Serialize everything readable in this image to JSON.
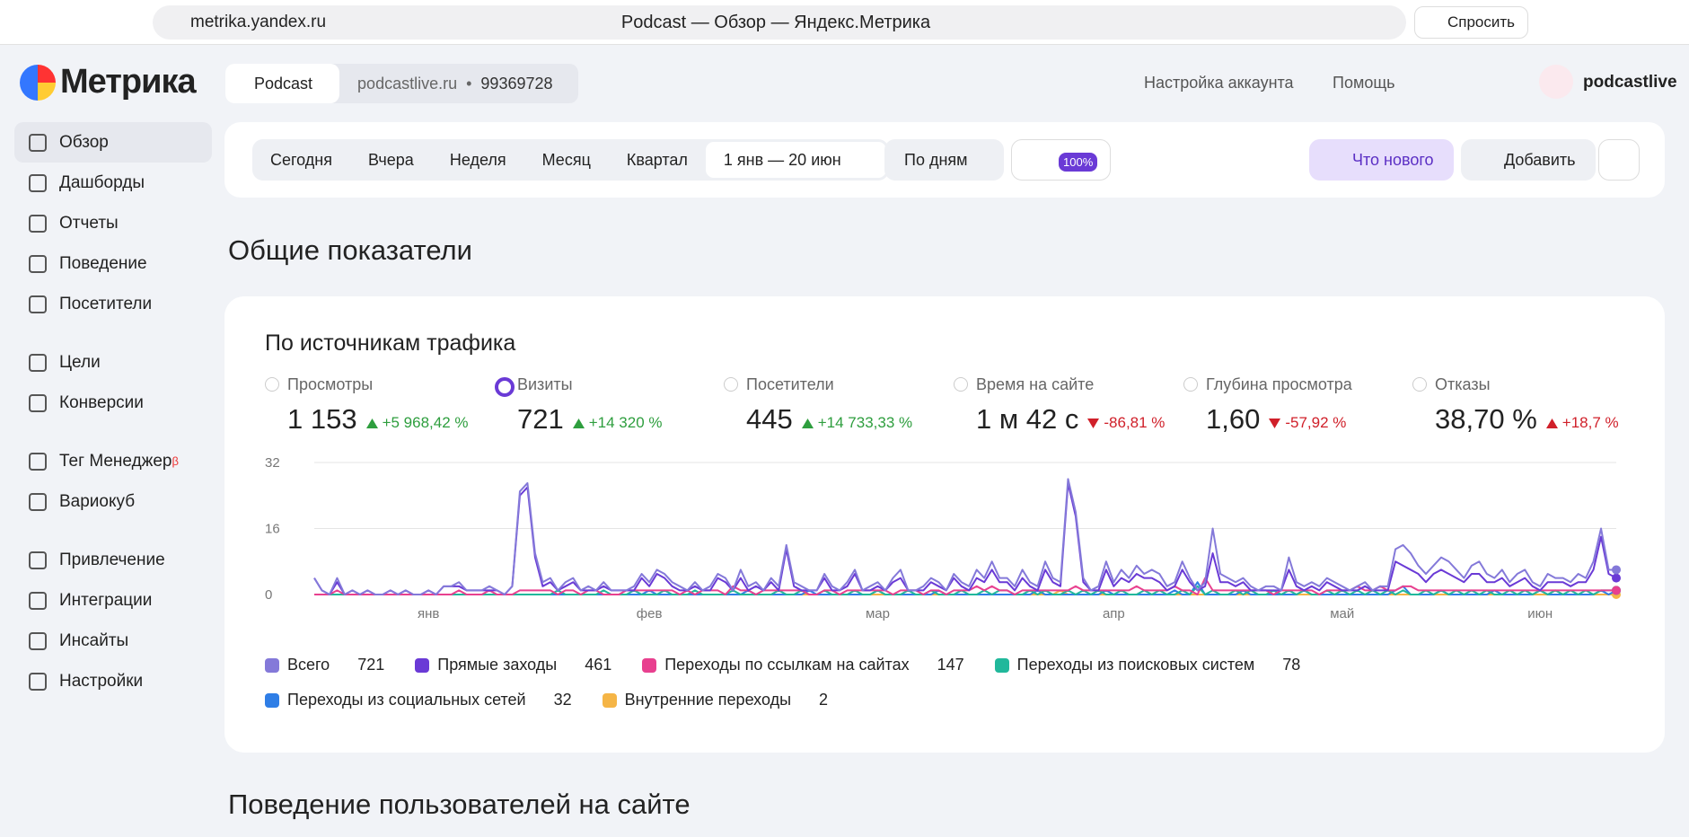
{
  "browser": {
    "url": "metrika.yandex.ru",
    "tab_title": "Podcast — Обзор — Яндекс.Метрика",
    "ask": "Спросить"
  },
  "header": {
    "logo": "Метрика",
    "counter": "Podcast",
    "site": "podcastlive.ru",
    "sep": "•",
    "counter_id": "99369728",
    "account": "Настройка аккаунта",
    "help": "Помощь",
    "user": "podcastlive"
  },
  "sidebar": {
    "groups": [
      [
        "Обзор",
        "Дашборды",
        "Отчеты",
        "Поведение",
        "Посетители"
      ],
      [
        "Цели",
        "Конверсии"
      ],
      [
        "Тег Менеджер",
        "Вариокуб"
      ],
      [
        "Привлечение",
        "Интеграции",
        "Инсайты",
        "Настройки"
      ]
    ],
    "beta": "β"
  },
  "toolbar": {
    "periods": [
      "Сегодня",
      "Вчера",
      "Неделя",
      "Месяц",
      "Квартал"
    ],
    "range": "1 янв — 20 июн",
    "grouping": "По дням",
    "sampling": "100%",
    "whats_new": "Что нового",
    "add": "Добавить"
  },
  "sections": [
    "Общие показатели",
    "Поведение пользователей на сайте"
  ],
  "card": {
    "title": "По источникам трафика",
    "metrics": [
      {
        "name": "Просмотры",
        "value": "1 153",
        "delta": "+5 968,42 %",
        "trend": "up"
      },
      {
        "name": "Визиты",
        "value": "721",
        "delta": "+14 320 %",
        "trend": "up",
        "selected": true
      },
      {
        "name": "Посетители",
        "value": "445",
        "delta": "+14 733,33 %",
        "trend": "up"
      },
      {
        "name": "Время на сайте",
        "value": "1 м 42 с",
        "delta": "-86,81 %",
        "trend": "down"
      },
      {
        "name": "Глубина просмотра",
        "value": "1,60",
        "delta": "-57,92 %",
        "trend": "down"
      },
      {
        "name": "Отказы",
        "value": "38,70 %",
        "delta": "+18,7 %",
        "trend": "up-bad"
      }
    ]
  },
  "chart_data": {
    "type": "line",
    "xlim": [
      0,
      171
    ],
    "ylim": [
      0,
      32
    ],
    "yticks": [
      0,
      16,
      32
    ],
    "grid": true,
    "xticks": [
      {
        "value": 15,
        "label": "янв"
      },
      {
        "value": 44,
        "label": "фев"
      },
      {
        "value": 74,
        "label": "мар"
      },
      {
        "value": 105,
        "label": "апр"
      },
      {
        "value": 135,
        "label": "май"
      },
      {
        "value": 161,
        "label": "июн"
      }
    ],
    "series": [
      {
        "name": "Всего",
        "total": 721,
        "color": "#8479d9",
        "values": [
          4,
          1,
          0,
          4,
          0,
          1,
          0,
          1,
          0,
          0,
          1,
          0,
          1,
          0,
          0,
          1,
          0,
          2,
          2,
          3,
          1,
          1,
          1,
          2,
          1,
          0,
          2,
          25,
          27,
          10,
          3,
          4,
          1,
          3,
          4,
          1,
          2,
          1,
          3,
          1,
          1,
          1,
          2,
          5,
          3,
          6,
          5,
          3,
          2,
          1,
          3,
          1,
          2,
          5,
          4,
          1,
          6,
          2,
          3,
          1,
          4,
          2,
          12,
          3,
          2,
          1,
          1,
          5,
          2,
          1,
          3,
          6,
          1,
          2,
          3,
          1,
          4,
          6,
          1,
          1,
          2,
          4,
          3,
          1,
          5,
          3,
          2,
          6,
          4,
          8,
          4,
          4,
          2,
          6,
          3,
          2,
          8,
          4,
          3,
          28,
          20,
          4,
          1,
          2,
          8,
          3,
          6,
          4,
          7,
          5,
          6,
          5,
          2,
          3,
          8,
          4,
          1,
          3,
          16,
          5,
          4,
          3,
          4,
          2,
          1,
          2,
          2,
          1,
          9,
          3,
          2,
          3,
          2,
          4,
          3,
          2,
          1,
          2,
          3,
          1,
          2,
          2,
          11,
          12,
          10,
          7,
          5,
          7,
          9,
          8,
          6,
          4,
          7,
          8,
          5,
          4,
          6,
          3,
          5,
          6,
          3,
          2,
          5,
          4,
          4,
          3,
          5,
          4,
          8,
          16,
          6,
          6
        ]
      },
      {
        "name": "Прямые заходы",
        "total": 461,
        "color": "#6a3ad6",
        "values": [
          4,
          1,
          0,
          3,
          0,
          1,
          0,
          1,
          0,
          0,
          1,
          0,
          1,
          0,
          0,
          1,
          0,
          2,
          2,
          2,
          1,
          1,
          1,
          1,
          1,
          0,
          2,
          24,
          26,
          9,
          2,
          3,
          1,
          2,
          3,
          1,
          1,
          1,
          2,
          1,
          1,
          1,
          1,
          4,
          2,
          5,
          4,
          2,
          1,
          1,
          2,
          1,
          1,
          4,
          3,
          1,
          4,
          1,
          2,
          1,
          3,
          1,
          11,
          2,
          1,
          1,
          1,
          4,
          1,
          1,
          2,
          5,
          1,
          1,
          2,
          1,
          3,
          4,
          1,
          1,
          1,
          3,
          2,
          1,
          4,
          2,
          1,
          4,
          3,
          6,
          3,
          3,
          1,
          4,
          2,
          1,
          6,
          3,
          2,
          27,
          19,
          3,
          1,
          1,
          6,
          2,
          4,
          3,
          5,
          4,
          4,
          3,
          1,
          2,
          6,
          3,
          1,
          2,
          10,
          3,
          3,
          2,
          3,
          1,
          1,
          1,
          1,
          1,
          6,
          2,
          1,
          2,
          1,
          3,
          2,
          1,
          1,
          1,
          2,
          1,
          1,
          1,
          8,
          7,
          6,
          5,
          3,
          5,
          6,
          5,
          4,
          3,
          5,
          5,
          3,
          3,
          4,
          2,
          3,
          4,
          2,
          1,
          3,
          3,
          3,
          2,
          3,
          3,
          6,
          14,
          5,
          4
        ]
      },
      {
        "name": "Переходы по ссылкам на сайтах",
        "total": 147,
        "color": "#e8408f",
        "values": [
          0,
          0,
          0,
          1,
          0,
          0,
          0,
          0,
          0,
          0,
          0,
          0,
          0,
          0,
          0,
          0,
          0,
          0,
          0,
          1,
          0,
          0,
          0,
          1,
          0,
          0,
          0,
          1,
          1,
          1,
          1,
          1,
          0,
          1,
          1,
          0,
          1,
          1,
          0,
          0,
          0,
          1,
          1,
          1,
          1,
          1,
          1,
          1,
          0,
          1,
          0,
          1,
          1,
          1,
          0,
          2,
          1,
          1,
          0,
          1,
          1,
          1,
          1,
          1,
          1,
          0,
          0,
          1,
          1,
          0,
          1,
          1,
          1,
          1,
          1,
          1,
          0,
          1,
          1,
          1,
          0,
          1,
          1,
          0,
          1,
          1,
          1,
          2,
          1,
          2,
          1,
          1,
          0,
          1,
          1,
          1,
          1,
          1,
          1,
          1,
          2,
          1,
          1,
          1,
          1,
          1,
          1,
          1,
          2,
          1,
          1,
          1,
          1,
          2,
          1,
          1,
          0,
          4,
          1,
          1,
          1,
          1,
          1,
          1,
          1,
          1,
          0,
          1,
          1,
          1,
          1,
          1,
          0,
          1,
          1,
          1,
          1,
          2,
          1,
          1,
          2,
          1,
          1,
          2,
          2,
          1,
          1,
          1,
          1,
          1,
          1,
          1,
          1,
          1,
          1,
          1,
          1,
          1,
          1,
          1,
          1,
          1,
          1,
          1,
          1,
          1,
          1,
          1,
          1,
          1,
          1,
          1
        ]
      },
      {
        "name": "Переходы из поисковых систем",
        "total": 78,
        "color": "#21b89b",
        "values": [
          0,
          0,
          0,
          0,
          0,
          0,
          0,
          0,
          0,
          0,
          0,
          0,
          0,
          0,
          0,
          0,
          0,
          0,
          0,
          0,
          0,
          0,
          0,
          0,
          0,
          0,
          0,
          0,
          0,
          0,
          0,
          0,
          1,
          0,
          0,
          0,
          0,
          0,
          1,
          0,
          0,
          0,
          1,
          0,
          0,
          0,
          1,
          0,
          0,
          0,
          1,
          0,
          0,
          0,
          0,
          1,
          0,
          0,
          0,
          0,
          0,
          1,
          0,
          0,
          1,
          0,
          0,
          1,
          0,
          0,
          0,
          1,
          0,
          0,
          1,
          0,
          0,
          0,
          1,
          0,
          0,
          1,
          0,
          0,
          0,
          1,
          0,
          0,
          1,
          0,
          1,
          1,
          0,
          0,
          1,
          0,
          1,
          0,
          0,
          1,
          0,
          1,
          0,
          1,
          0,
          0,
          1,
          0,
          0,
          1,
          0,
          1,
          0,
          0,
          1,
          0,
          2,
          0,
          1,
          0,
          0,
          1,
          0,
          1,
          0,
          0,
          1,
          0,
          1,
          0,
          1,
          0,
          0,
          1,
          0,
          1,
          0,
          1,
          0,
          1,
          0,
          1,
          0,
          1,
          0,
          0,
          1,
          0,
          1,
          0,
          1,
          0,
          1,
          0,
          1,
          0,
          0,
          1,
          0,
          1,
          0,
          1,
          0,
          1,
          0,
          1,
          0,
          1,
          0,
          1,
          1,
          1
        ]
      },
      {
        "name": "Переходы из социальных сетей",
        "total": 32,
        "color": "#2f7ee6",
        "values": [
          0,
          0,
          0,
          0,
          0,
          0,
          0,
          0,
          0,
          0,
          0,
          0,
          0,
          0,
          0,
          0,
          0,
          0,
          0,
          0,
          0,
          0,
          0,
          0,
          0,
          0,
          0,
          0,
          0,
          0,
          0,
          0,
          0,
          0,
          0,
          0,
          0,
          0,
          0,
          0,
          0,
          0,
          0,
          0,
          1,
          0,
          0,
          0,
          0,
          0,
          0,
          0,
          0,
          0,
          0,
          0,
          0,
          1,
          0,
          0,
          0,
          0,
          0,
          0,
          0,
          1,
          0,
          0,
          0,
          0,
          0,
          0,
          0,
          0,
          1,
          0,
          0,
          0,
          0,
          0,
          0,
          0,
          1,
          0,
          0,
          0,
          0,
          0,
          0,
          0,
          0,
          0,
          0,
          0,
          0,
          1,
          0,
          0,
          0,
          0,
          0,
          0,
          0,
          0,
          1,
          0,
          0,
          0,
          0,
          0,
          0,
          0,
          0,
          1,
          0,
          0,
          3,
          0,
          0,
          0,
          0,
          0,
          1,
          0,
          0,
          0,
          0,
          0,
          0,
          0,
          1,
          0,
          0,
          0,
          0,
          0,
          0,
          0,
          0,
          0,
          0,
          0,
          1,
          2,
          0,
          0,
          0,
          0,
          1,
          0,
          0,
          0,
          0,
          0,
          0,
          1,
          0,
          0,
          0,
          0,
          0,
          1,
          0,
          0,
          0,
          0,
          0,
          0,
          0,
          1,
          0,
          1
        ]
      },
      {
        "name": "Внутренние переходы",
        "total": 2,
        "color": "#f5b546",
        "values": [
          0,
          0,
          0,
          0,
          0,
          0,
          0,
          0,
          0,
          0,
          0,
          0,
          0,
          0,
          0,
          0,
          0,
          0,
          0,
          0,
          0,
          0,
          0,
          0,
          0,
          0,
          0,
          0,
          0,
          0,
          0,
          0,
          0,
          0,
          0,
          0,
          0,
          0,
          0,
          0,
          0,
          0,
          0,
          0,
          0,
          0,
          0,
          0,
          0,
          0,
          0,
          0,
          0,
          0,
          0,
          0,
          0,
          0,
          0,
          0,
          0,
          0,
          0,
          0,
          0,
          0,
          0,
          0,
          0,
          0,
          0,
          0,
          0,
          0,
          0,
          0,
          0,
          0,
          0,
          0,
          0,
          0,
          0,
          0,
          0,
          0,
          0,
          0,
          0,
          0,
          0,
          0,
          0,
          0,
          0,
          0,
          0,
          0,
          1,
          0,
          0,
          0,
          0,
          0,
          0,
          0,
          0,
          0,
          0,
          0,
          0,
          0,
          0,
          0,
          0,
          0,
          0,
          0,
          0,
          0,
          0,
          0,
          0,
          0,
          0,
          0,
          0,
          0,
          0,
          0,
          0,
          0,
          0,
          0,
          0,
          0,
          0,
          0,
          0,
          0,
          0,
          0,
          0,
          0,
          0,
          0,
          0,
          0,
          0,
          0,
          0,
          0,
          0,
          0,
          0,
          0,
          0,
          0,
          0,
          0,
          0,
          0,
          0,
          1,
          0,
          0,
          0,
          0,
          0,
          0,
          0,
          0
        ]
      }
    ]
  }
}
